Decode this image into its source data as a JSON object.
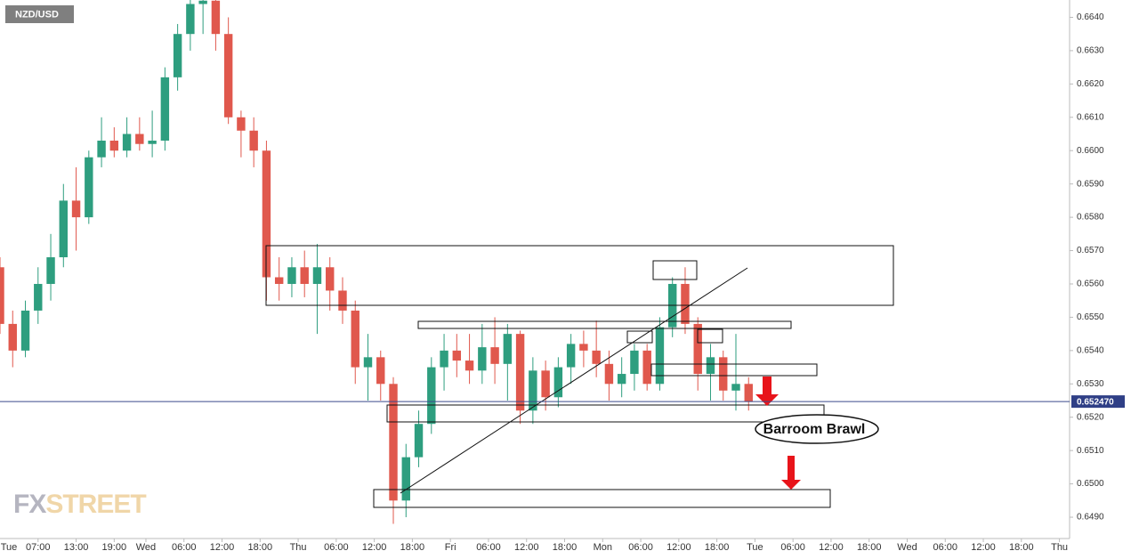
{
  "chart_data": {
    "type": "candlestick",
    "title": "NZD/USD",
    "watermark": {
      "prefix": "FX",
      "suffix": "STREET"
    },
    "annotation": "Barroom Brawl",
    "up_color": "#2e9e7f",
    "down_color": "#e0584d",
    "x": [
      1,
      3,
      5,
      7,
      9,
      11,
      13,
      15,
      17,
      19,
      21,
      23,
      25,
      27,
      29,
      31,
      33,
      35,
      37,
      39,
      41,
      43,
      45,
      47,
      49,
      51,
      53,
      55,
      57,
      59,
      61,
      63,
      65,
      67,
      69,
      71,
      73,
      75,
      77,
      79,
      81,
      83,
      85,
      87,
      89,
      91,
      93,
      95,
      97,
      99,
      101,
      103,
      105,
      107,
      109,
      111,
      113,
      115,
      117,
      119
    ],
    "open": [
      0.6565,
      0.6548,
      0.654,
      0.6552,
      0.656,
      0.6568,
      0.6585,
      0.658,
      0.6598,
      0.6603,
      0.66,
      0.6605,
      0.6602,
      0.6603,
      0.6622,
      0.6635,
      0.6644,
      0.6645,
      0.6635,
      0.661,
      0.6606,
      0.66,
      0.6562,
      0.656,
      0.6565,
      0.656,
      0.6565,
      0.6558,
      0.6552,
      0.6535,
      0.6538,
      0.653,
      0.6495,
      0.6508,
      0.6518,
      0.6535,
      0.654,
      0.6537,
      0.6534,
      0.6541,
      0.6536,
      0.6545,
      0.6522,
      0.6534,
      0.6526,
      0.6535,
      0.6542,
      0.654,
      0.6536,
      0.653,
      0.6533,
      0.654,
      0.653,
      0.6547,
      0.656,
      0.6548,
      0.6533,
      0.6538,
      0.6528,
      0.653
    ],
    "high": [
      0.6568,
      0.6552,
      0.6555,
      0.6565,
      0.6575,
      0.659,
      0.6595,
      0.66,
      0.661,
      0.6607,
      0.661,
      0.661,
      0.6612,
      0.6625,
      0.6638,
      0.6648,
      0.665,
      0.665,
      0.664,
      0.6612,
      0.661,
      0.6603,
      0.6568,
      0.6568,
      0.657,
      0.6572,
      0.6568,
      0.6562,
      0.6555,
      0.6545,
      0.654,
      0.6532,
      0.6512,
      0.6522,
      0.6538,
      0.6545,
      0.6545,
      0.6545,
      0.6548,
      0.655,
      0.6548,
      0.6546,
      0.6538,
      0.6537,
      0.6538,
      0.6545,
      0.6546,
      0.6549,
      0.654,
      0.6538,
      0.6542,
      0.6542,
      0.655,
      0.6562,
      0.6565,
      0.655,
      0.6542,
      0.654,
      0.6545,
      0.6532
    ],
    "low": [
      0.6545,
      0.6535,
      0.6538,
      0.6548,
      0.6555,
      0.6565,
      0.657,
      0.6578,
      0.6595,
      0.6598,
      0.6598,
      0.66,
      0.6598,
      0.66,
      0.6618,
      0.663,
      0.6635,
      0.663,
      0.6608,
      0.6598,
      0.6595,
      0.6555,
      0.6555,
      0.6556,
      0.6556,
      0.6545,
      0.6552,
      0.6548,
      0.653,
      0.6525,
      0.6525,
      0.6488,
      0.649,
      0.6505,
      0.6515,
      0.6528,
      0.6532,
      0.653,
      0.653,
      0.653,
      0.6525,
      0.6518,
      0.6518,
      0.6522,
      0.6523,
      0.653,
      0.6535,
      0.6532,
      0.6525,
      0.6526,
      0.6528,
      0.6528,
      0.6528,
      0.6544,
      0.6545,
      0.6528,
      0.6525,
      0.6525,
      0.6522,
      0.6522
    ],
    "close": [
      0.6548,
      0.654,
      0.6552,
      0.656,
      0.6568,
      0.6585,
      0.658,
      0.6598,
      0.6603,
      0.66,
      0.6605,
      0.6602,
      0.6603,
      0.6622,
      0.6635,
      0.6644,
      0.6645,
      0.6635,
      0.661,
      0.6606,
      0.66,
      0.6562,
      0.656,
      0.6565,
      0.656,
      0.6565,
      0.6558,
      0.6552,
      0.6535,
      0.6538,
      0.653,
      0.6495,
      0.6508,
      0.6518,
      0.6535,
      0.654,
      0.6537,
      0.6534,
      0.6541,
      0.6536,
      0.6545,
      0.6522,
      0.6534,
      0.6526,
      0.6535,
      0.6542,
      0.654,
      0.6536,
      0.653,
      0.6533,
      0.654,
      0.653,
      0.6547,
      0.656,
      0.6548,
      0.6533,
      0.6538,
      0.6528,
      0.653,
      0.65247
    ],
    "last": {
      "value": 0.65247,
      "label": "0.652470"
    },
    "xlim": [
      1,
      169.6
    ],
    "ylim": [
      0.64836,
      0.66452
    ],
    "yticks": [
      {
        "value": 0.649,
        "label": "0.6490"
      },
      {
        "value": 0.65,
        "label": "0.6500"
      },
      {
        "value": 0.651,
        "label": "0.6510"
      },
      {
        "value": 0.652,
        "label": "0.6520"
      },
      {
        "value": 0.653,
        "label": "0.6530"
      },
      {
        "value": 0.654,
        "label": "0.6540"
      },
      {
        "value": 0.655,
        "label": "0.6550"
      },
      {
        "value": 0.656,
        "label": "0.6560"
      },
      {
        "value": 0.657,
        "label": "0.6570"
      },
      {
        "value": 0.658,
        "label": "0.6580"
      },
      {
        "value": 0.659,
        "label": "0.6590"
      },
      {
        "value": 0.66,
        "label": "0.6600"
      },
      {
        "value": 0.661,
        "label": "0.6610"
      },
      {
        "value": 0.662,
        "label": "0.6620"
      },
      {
        "value": 0.663,
        "label": "0.6630"
      },
      {
        "value": 0.664,
        "label": "0.6640"
      }
    ],
    "xticks": [
      {
        "value": 0,
        "label": "Tue"
      },
      {
        "value": 7,
        "label": "07:00"
      },
      {
        "value": 13,
        "label": "13:00"
      },
      {
        "value": 19,
        "label": "19:00"
      },
      {
        "value": 24,
        "label": "Wed"
      },
      {
        "value": 30,
        "label": "06:00"
      },
      {
        "value": 36,
        "label": "12:00"
      },
      {
        "value": 42,
        "label": "18:00"
      },
      {
        "value": 48,
        "label": "Thu"
      },
      {
        "value": 54,
        "label": "06:00"
      },
      {
        "value": 60,
        "label": "12:00"
      },
      {
        "value": 66,
        "label": "18:00"
      },
      {
        "value": 72,
        "label": "Fri"
      },
      {
        "value": 78,
        "label": "06:00"
      },
      {
        "value": 84,
        "label": "12:00"
      },
      {
        "value": 90,
        "label": "18:00"
      },
      {
        "value": 96,
        "label": "Mon"
      },
      {
        "value": 102,
        "label": "06:00"
      },
      {
        "value": 108,
        "label": "12:00"
      },
      {
        "value": 114,
        "label": "18:00"
      },
      {
        "value": 120,
        "label": "Tue"
      },
      {
        "value": 126,
        "label": "06:00"
      },
      {
        "value": 132,
        "label": "12:00"
      },
      {
        "value": 138,
        "label": "18:00"
      },
      {
        "value": 144,
        "label": "Wed"
      },
      {
        "value": 150,
        "label": "06:00"
      },
      {
        "value": 156,
        "label": "12:00"
      },
      {
        "value": 162,
        "label": "18:00"
      },
      {
        "value": 168,
        "label": "Thu"
      }
    ],
    "grid": false
  }
}
